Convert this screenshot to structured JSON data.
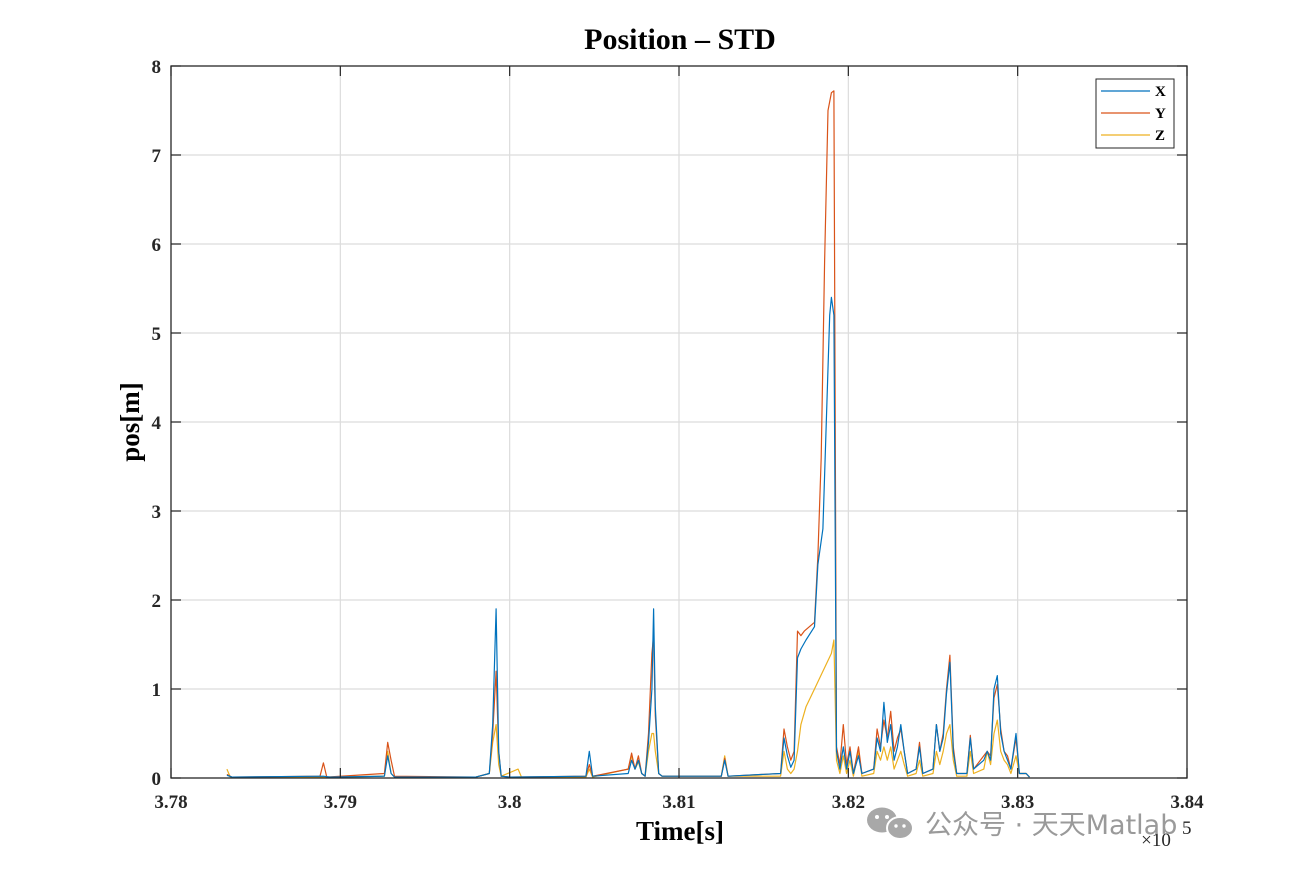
{
  "chart_data": {
    "type": "line",
    "title": "Position – STD",
    "xlabel": "Time[s]",
    "ylabel": "pos[m]",
    "x_scale_label": "×10",
    "x_scale_exponent": "5",
    "xlim": [
      378000,
      384000
    ],
    "ylim": [
      0,
      8
    ],
    "xticks": [
      378000,
      379000,
      380000,
      381000,
      382000,
      383000,
      384000
    ],
    "xtick_labels": [
      "3.78",
      "3.79",
      "3.8",
      "3.81",
      "3.82",
      "3.83",
      "3.84"
    ],
    "yticks": [
      0,
      1,
      2,
      3,
      4,
      5,
      6,
      7,
      8
    ],
    "ytick_labels": [
      "0",
      "1",
      "2",
      "3",
      "4",
      "5",
      "6",
      "7",
      "8"
    ],
    "grid": true,
    "legend_position": "top-right",
    "series": [
      {
        "name": "X",
        "color": "#0072BD",
        "points": [
          [
            378330,
            0.03
          ],
          [
            378360,
            0.01
          ],
          [
            378900,
            0.02
          ],
          [
            378940,
            0.01
          ],
          [
            379260,
            0.02
          ],
          [
            379280,
            0.25
          ],
          [
            379300,
            0.05
          ],
          [
            379320,
            0.01
          ],
          [
            379800,
            0.01
          ],
          [
            379880,
            0.05
          ],
          [
            379900,
            0.6
          ],
          [
            379920,
            1.9
          ],
          [
            379935,
            0.3
          ],
          [
            379950,
            0.02
          ],
          [
            380000,
            0.01
          ],
          [
            380450,
            0.02
          ],
          [
            380470,
            0.3
          ],
          [
            380490,
            0.02
          ],
          [
            380700,
            0.05
          ],
          [
            380720,
            0.2
          ],
          [
            380740,
            0.1
          ],
          [
            380760,
            0.2
          ],
          [
            380780,
            0.05
          ],
          [
            380800,
            0.02
          ],
          [
            380820,
            0.4
          ],
          [
            380840,
            1.0
          ],
          [
            380850,
            1.9
          ],
          [
            380860,
            0.8
          ],
          [
            380880,
            0.05
          ],
          [
            380900,
            0.02
          ],
          [
            381250,
            0.02
          ],
          [
            381270,
            0.2
          ],
          [
            381290,
            0.02
          ],
          [
            381600,
            0.05
          ],
          [
            381620,
            0.45
          ],
          [
            381640,
            0.25
          ],
          [
            381660,
            0.12
          ],
          [
            381680,
            0.2
          ],
          [
            381700,
            1.35
          ],
          [
            381720,
            1.45
          ],
          [
            381750,
            1.55
          ],
          [
            381800,
            1.7
          ],
          [
            381820,
            2.4
          ],
          [
            381850,
            2.8
          ],
          [
            381870,
            4.0
          ],
          [
            381890,
            5.2
          ],
          [
            381900,
            5.4
          ],
          [
            381915,
            5.2
          ],
          [
            381930,
            0.3
          ],
          [
            381950,
            0.1
          ],
          [
            381970,
            0.35
          ],
          [
            381990,
            0.1
          ],
          [
            382010,
            0.3
          ],
          [
            382030,
            0.05
          ],
          [
            382060,
            0.25
          ],
          [
            382080,
            0.05
          ],
          [
            382150,
            0.1
          ],
          [
            382170,
            0.45
          ],
          [
            382190,
            0.3
          ],
          [
            382210,
            0.85
          ],
          [
            382230,
            0.4
          ],
          [
            382250,
            0.6
          ],
          [
            382270,
            0.2
          ],
          [
            382290,
            0.35
          ],
          [
            382310,
            0.6
          ],
          [
            382330,
            0.3
          ],
          [
            382350,
            0.05
          ],
          [
            382400,
            0.1
          ],
          [
            382420,
            0.35
          ],
          [
            382440,
            0.05
          ],
          [
            382500,
            0.1
          ],
          [
            382520,
            0.6
          ],
          [
            382540,
            0.3
          ],
          [
            382560,
            0.45
          ],
          [
            382580,
            0.95
          ],
          [
            382600,
            1.3
          ],
          [
            382620,
            0.3
          ],
          [
            382640,
            0.05
          ],
          [
            382700,
            0.05
          ],
          [
            382720,
            0.45
          ],
          [
            382740,
            0.1
          ],
          [
            382800,
            0.2
          ],
          [
            382820,
            0.3
          ],
          [
            382840,
            0.2
          ],
          [
            382860,
            1.0
          ],
          [
            382880,
            1.15
          ],
          [
            382900,
            0.5
          ],
          [
            382920,
            0.3
          ],
          [
            382940,
            0.2
          ],
          [
            382960,
            0.1
          ],
          [
            382990,
            0.5
          ],
          [
            383010,
            0.05
          ],
          [
            383050,
            0.05
          ],
          [
            383070,
            0.01
          ]
        ]
      },
      {
        "name": "Y",
        "color": "#D95319",
        "points": [
          [
            378330,
            0.04
          ],
          [
            378360,
            0.01
          ],
          [
            378880,
            0.02
          ],
          [
            378900,
            0.17
          ],
          [
            378920,
            0.01
          ],
          [
            379260,
            0.05
          ],
          [
            379280,
            0.4
          ],
          [
            379300,
            0.2
          ],
          [
            379320,
            0.02
          ],
          [
            379800,
            0.01
          ],
          [
            379880,
            0.05
          ],
          [
            379900,
            0.5
          ],
          [
            379920,
            1.2
          ],
          [
            379935,
            0.3
          ],
          [
            379950,
            0.02
          ],
          [
            380000,
            0.01
          ],
          [
            380450,
            0.02
          ],
          [
            380470,
            0.15
          ],
          [
            380490,
            0.02
          ],
          [
            380700,
            0.1
          ],
          [
            380720,
            0.28
          ],
          [
            380740,
            0.1
          ],
          [
            380760,
            0.25
          ],
          [
            380780,
            0.05
          ],
          [
            380800,
            0.02
          ],
          [
            380820,
            0.5
          ],
          [
            380840,
            1.4
          ],
          [
            380850,
            1.6
          ],
          [
            380860,
            0.7
          ],
          [
            380880,
            0.05
          ],
          [
            380900,
            0.02
          ],
          [
            381250,
            0.02
          ],
          [
            381270,
            0.22
          ],
          [
            381290,
            0.02
          ],
          [
            381600,
            0.05
          ],
          [
            381620,
            0.55
          ],
          [
            381640,
            0.35
          ],
          [
            381660,
            0.2
          ],
          [
            381680,
            0.3
          ],
          [
            381700,
            1.65
          ],
          [
            381720,
            1.6
          ],
          [
            381740,
            1.65
          ],
          [
            381800,
            1.75
          ],
          [
            381820,
            2.5
          ],
          [
            381840,
            3.6
          ],
          [
            381860,
            5.8
          ],
          [
            381880,
            7.5
          ],
          [
            381890,
            7.6
          ],
          [
            381900,
            7.7
          ],
          [
            381915,
            7.72
          ],
          [
            381930,
            0.35
          ],
          [
            381950,
            0.15
          ],
          [
            381970,
            0.6
          ],
          [
            381990,
            0.15
          ],
          [
            382010,
            0.35
          ],
          [
            382030,
            0.05
          ],
          [
            382060,
            0.35
          ],
          [
            382080,
            0.05
          ],
          [
            382150,
            0.1
          ],
          [
            382170,
            0.55
          ],
          [
            382190,
            0.35
          ],
          [
            382210,
            0.65
          ],
          [
            382230,
            0.45
          ],
          [
            382250,
            0.75
          ],
          [
            382270,
            0.3
          ],
          [
            382290,
            0.45
          ],
          [
            382310,
            0.55
          ],
          [
            382330,
            0.3
          ],
          [
            382350,
            0.05
          ],
          [
            382400,
            0.1
          ],
          [
            382420,
            0.4
          ],
          [
            382440,
            0.05
          ],
          [
            382500,
            0.1
          ],
          [
            382520,
            0.6
          ],
          [
            382540,
            0.3
          ],
          [
            382560,
            0.5
          ],
          [
            382580,
            1.0
          ],
          [
            382600,
            1.38
          ],
          [
            382620,
            0.35
          ],
          [
            382640,
            0.05
          ],
          [
            382700,
            0.05
          ],
          [
            382720,
            0.48
          ],
          [
            382740,
            0.1
          ],
          [
            382800,
            0.25
          ],
          [
            382820,
            0.3
          ],
          [
            382840,
            0.25
          ],
          [
            382860,
            0.9
          ],
          [
            382880,
            1.05
          ],
          [
            382900,
            0.55
          ],
          [
            382920,
            0.3
          ],
          [
            382940,
            0.25
          ],
          [
            382960,
            0.1
          ],
          [
            382990,
            0.45
          ],
          [
            383010,
            0.05
          ],
          [
            383050,
            0.05
          ],
          [
            383070,
            0.01
          ]
        ]
      },
      {
        "name": "Z",
        "color": "#EDB120",
        "points": [
          [
            378330,
            0.1
          ],
          [
            378350,
            0.01
          ],
          [
            378900,
            0.01
          ],
          [
            379260,
            0.02
          ],
          [
            379280,
            0.3
          ],
          [
            379300,
            0.05
          ],
          [
            379320,
            0.01
          ],
          [
            379800,
            0.01
          ],
          [
            379880,
            0.05
          ],
          [
            379900,
            0.4
          ],
          [
            379920,
            0.6
          ],
          [
            379935,
            0.15
          ],
          [
            379950,
            0.02
          ],
          [
            380050,
            0.1
          ],
          [
            380070,
            0.01
          ],
          [
            380450,
            0.01
          ],
          [
            380470,
            0.1
          ],
          [
            380490,
            0.01
          ],
          [
            380700,
            0.1
          ],
          [
            380720,
            0.25
          ],
          [
            380740,
            0.1
          ],
          [
            380760,
            0.18
          ],
          [
            380780,
            0.05
          ],
          [
            380800,
            0.02
          ],
          [
            380820,
            0.3
          ],
          [
            380840,
            0.5
          ],
          [
            380850,
            0.5
          ],
          [
            380860,
            0.3
          ],
          [
            380880,
            0.05
          ],
          [
            380900,
            0.02
          ],
          [
            381250,
            0.02
          ],
          [
            381270,
            0.25
          ],
          [
            381290,
            0.02
          ],
          [
            381600,
            0.02
          ],
          [
            381620,
            0.3
          ],
          [
            381640,
            0.1
          ],
          [
            381660,
            0.05
          ],
          [
            381680,
            0.1
          ],
          [
            381700,
            0.3
          ],
          [
            381720,
            0.6
          ],
          [
            381750,
            0.8
          ],
          [
            381800,
            1.0
          ],
          [
            381850,
            1.2
          ],
          [
            381900,
            1.4
          ],
          [
            381915,
            1.55
          ],
          [
            381930,
            0.2
          ],
          [
            381950,
            0.05
          ],
          [
            381970,
            0.25
          ],
          [
            381990,
            0.05
          ],
          [
            382010,
            0.2
          ],
          [
            382030,
            0.02
          ],
          [
            382060,
            0.3
          ],
          [
            382080,
            0.02
          ],
          [
            382150,
            0.05
          ],
          [
            382170,
            0.3
          ],
          [
            382190,
            0.2
          ],
          [
            382210,
            0.35
          ],
          [
            382230,
            0.2
          ],
          [
            382250,
            0.35
          ],
          [
            382270,
            0.1
          ],
          [
            382290,
            0.2
          ],
          [
            382310,
            0.3
          ],
          [
            382330,
            0.15
          ],
          [
            382350,
            0.02
          ],
          [
            382400,
            0.05
          ],
          [
            382420,
            0.2
          ],
          [
            382440,
            0.02
          ],
          [
            382500,
            0.05
          ],
          [
            382520,
            0.3
          ],
          [
            382540,
            0.15
          ],
          [
            382560,
            0.3
          ],
          [
            382580,
            0.5
          ],
          [
            382600,
            0.6
          ],
          [
            382620,
            0.2
          ],
          [
            382640,
            0.02
          ],
          [
            382700,
            0.02
          ],
          [
            382720,
            0.3
          ],
          [
            382740,
            0.05
          ],
          [
            382800,
            0.1
          ],
          [
            382820,
            0.3
          ],
          [
            382840,
            0.15
          ],
          [
            382860,
            0.5
          ],
          [
            382880,
            0.65
          ],
          [
            382900,
            0.3
          ],
          [
            382920,
            0.2
          ],
          [
            382940,
            0.15
          ],
          [
            382960,
            0.05
          ],
          [
            382990,
            0.25
          ],
          [
            383010,
            0.05
          ],
          [
            383050,
            0.05
          ],
          [
            383070,
            0.01
          ]
        ]
      }
    ]
  },
  "watermark": {
    "text": "公众号 · 天天Matlab",
    "icon": "wechat-icon"
  }
}
